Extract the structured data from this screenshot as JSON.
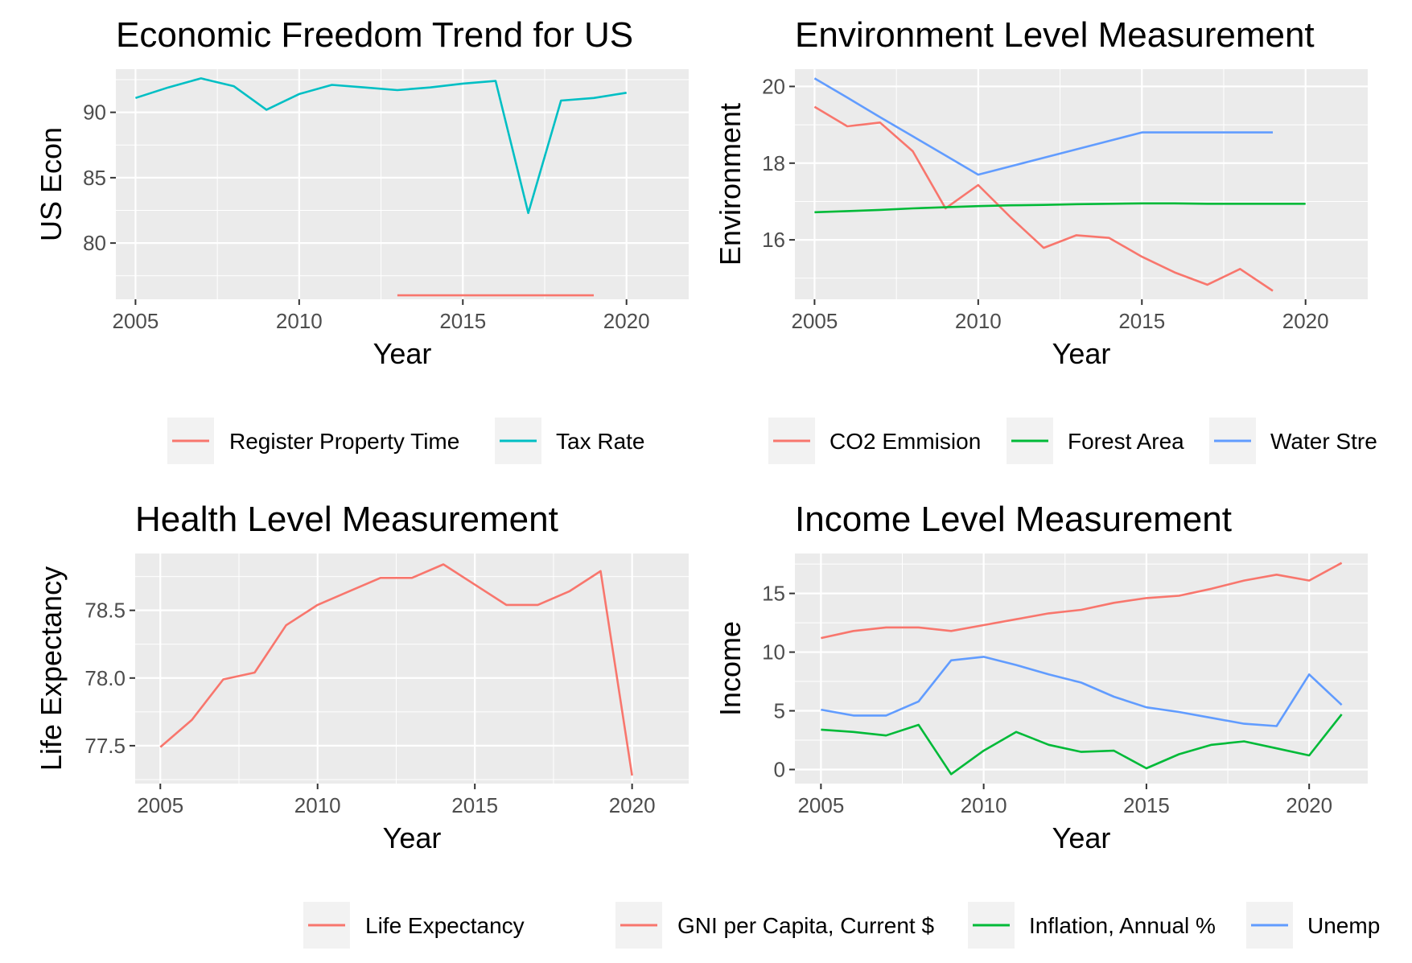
{
  "colors": {
    "red": "#F8766D",
    "teal": "#00BFC4",
    "green": "#00BA38",
    "blue": "#619CFF"
  },
  "chart_data": [
    {
      "type": "line",
      "title": "Economic Freedom Trend for US",
      "xlabel": "Year",
      "ylabel": "US Econ",
      "xlim": [
        2004.4,
        2021.9
      ],
      "ylim": [
        75.7,
        93.3
      ],
      "x_ticks": [
        2005,
        2010,
        2015,
        2020
      ],
      "y_ticks": [
        80,
        85,
        90
      ],
      "grid": true,
      "legend_position": "bottom",
      "series": [
        {
          "name": "Register Property Time",
          "color": "#F8766D",
          "x": [
            2013,
            2014,
            2015,
            2016,
            2017,
            2018,
            2019
          ],
          "y": [
            76,
            76,
            76,
            76,
            76,
            76,
            76
          ]
        },
        {
          "name": "Tax Rate",
          "color": "#00BFC4",
          "x": [
            2005,
            2006,
            2007,
            2008,
            2009,
            2010,
            2011,
            2012,
            2013,
            2014,
            2015,
            2016,
            2017,
            2018,
            2019,
            2020
          ],
          "y": [
            91.1,
            91.9,
            92.6,
            92.0,
            90.2,
            91.4,
            92.1,
            91.9,
            91.7,
            91.9,
            92.2,
            92.4,
            82.3,
            90.9,
            91.1,
            91.5
          ]
        }
      ]
    },
    {
      "type": "line",
      "title": "Environment Level Measurement",
      "xlabel": "Year",
      "ylabel": "Environment",
      "xlim": [
        2004.4,
        2021.9
      ],
      "ylim": [
        14.45,
        20.45
      ],
      "x_ticks": [
        2005,
        2010,
        2015,
        2020
      ],
      "y_ticks": [
        16,
        18,
        20
      ],
      "grid": true,
      "legend_position": "bottom",
      "series": [
        {
          "name": "CO2 Emmision",
          "color": "#F8766D",
          "x": [
            2005,
            2006,
            2007,
            2008,
            2009,
            2010,
            2011,
            2012,
            2013,
            2014,
            2015,
            2016,
            2017,
            2018,
            2019
          ],
          "y": [
            19.47,
            18.96,
            19.06,
            18.31,
            16.82,
            17.43,
            16.58,
            15.79,
            16.12,
            16.05,
            15.56,
            15.15,
            14.83,
            15.24,
            14.67
          ]
        },
        {
          "name": "Forest Area",
          "color": "#00BA38",
          "x": [
            2005,
            2006,
            2007,
            2008,
            2009,
            2010,
            2011,
            2012,
            2013,
            2014,
            2015,
            2016,
            2017,
            2018,
            2019,
            2020
          ],
          "y": [
            16.72,
            16.75,
            16.78,
            16.82,
            16.85,
            16.88,
            16.9,
            16.91,
            16.93,
            16.94,
            16.95,
            16.95,
            16.94,
            16.94,
            16.94,
            16.94
          ]
        },
        {
          "name": "Water Stre",
          "color": "#619CFF",
          "x": [
            2005,
            2006,
            2007,
            2008,
            2009,
            2010,
            2011,
            2012,
            2013,
            2014,
            2015,
            2016,
            2017,
            2018,
            2019
          ],
          "y": [
            20.21,
            19.71,
            19.2,
            18.7,
            18.2,
            17.7,
            17.92,
            18.14,
            18.36,
            18.58,
            18.8,
            18.8,
            18.8,
            18.8,
            18.8
          ]
        }
      ]
    },
    {
      "type": "line",
      "title": "Health Level Measurement",
      "xlabel": "Year",
      "ylabel": "Life Expectancy",
      "xlim": [
        2004.2,
        2021.8
      ],
      "ylim": [
        77.22,
        78.92
      ],
      "x_ticks": [
        2005,
        2010,
        2015,
        2020
      ],
      "y_ticks": [
        77.5,
        78.0,
        78.5
      ],
      "y_tick_labels": [
        "77.5",
        "78.0",
        "78.5"
      ],
      "grid": true,
      "legend_position": "bottom",
      "series": [
        {
          "name": "Life Expectancy",
          "color": "#F8766D",
          "x": [
            2005,
            2006,
            2007,
            2008,
            2009,
            2010,
            2011,
            2012,
            2013,
            2014,
            2015,
            2016,
            2017,
            2018,
            2019,
            2020
          ],
          "y": [
            77.49,
            77.69,
            77.99,
            78.04,
            78.39,
            78.54,
            78.64,
            78.74,
            78.74,
            78.84,
            78.69,
            78.54,
            78.54,
            78.64,
            78.79,
            77.28
          ]
        }
      ]
    },
    {
      "type": "line",
      "title": "Income Level Measurement",
      "xlabel": "Year",
      "ylabel": "Income",
      "xlim": [
        2004.2,
        2021.8
      ],
      "ylim": [
        -1.2,
        18.4
      ],
      "x_ticks": [
        2005,
        2010,
        2015,
        2020
      ],
      "y_ticks": [
        0,
        5,
        10,
        15
      ],
      "grid": true,
      "legend_position": "bottom",
      "series": [
        {
          "name": "GNI per Capita, Current $",
          "color": "#F8766D",
          "x": [
            2005,
            2006,
            2007,
            2008,
            2009,
            2010,
            2011,
            2012,
            2013,
            2014,
            2015,
            2016,
            2017,
            2018,
            2019,
            2020,
            2021
          ],
          "y": [
            11.2,
            11.8,
            12.1,
            12.1,
            11.8,
            12.3,
            12.8,
            13.3,
            13.6,
            14.2,
            14.6,
            14.8,
            15.4,
            16.1,
            16.6,
            16.1,
            17.6
          ]
        },
        {
          "name": "Inflation, Annual %",
          "color": "#00BA38",
          "x": [
            2005,
            2006,
            2007,
            2008,
            2009,
            2010,
            2011,
            2012,
            2013,
            2014,
            2015,
            2016,
            2017,
            2018,
            2019,
            2020,
            2021
          ],
          "y": [
            3.4,
            3.2,
            2.9,
            3.8,
            -0.4,
            1.6,
            3.2,
            2.1,
            1.5,
            1.6,
            0.1,
            1.3,
            2.1,
            2.4,
            1.8,
            1.2,
            4.7
          ]
        },
        {
          "name": "Unemp",
          "color": "#619CFF",
          "x": [
            2005,
            2006,
            2007,
            2008,
            2009,
            2010,
            2011,
            2012,
            2013,
            2014,
            2015,
            2016,
            2017,
            2018,
            2019,
            2020,
            2021
          ],
          "y": [
            5.1,
            4.6,
            4.6,
            5.8,
            9.3,
            9.6,
            8.9,
            8.1,
            7.4,
            6.2,
            5.3,
            4.9,
            4.4,
            3.9,
            3.7,
            8.1,
            5.5
          ]
        }
      ]
    }
  ]
}
